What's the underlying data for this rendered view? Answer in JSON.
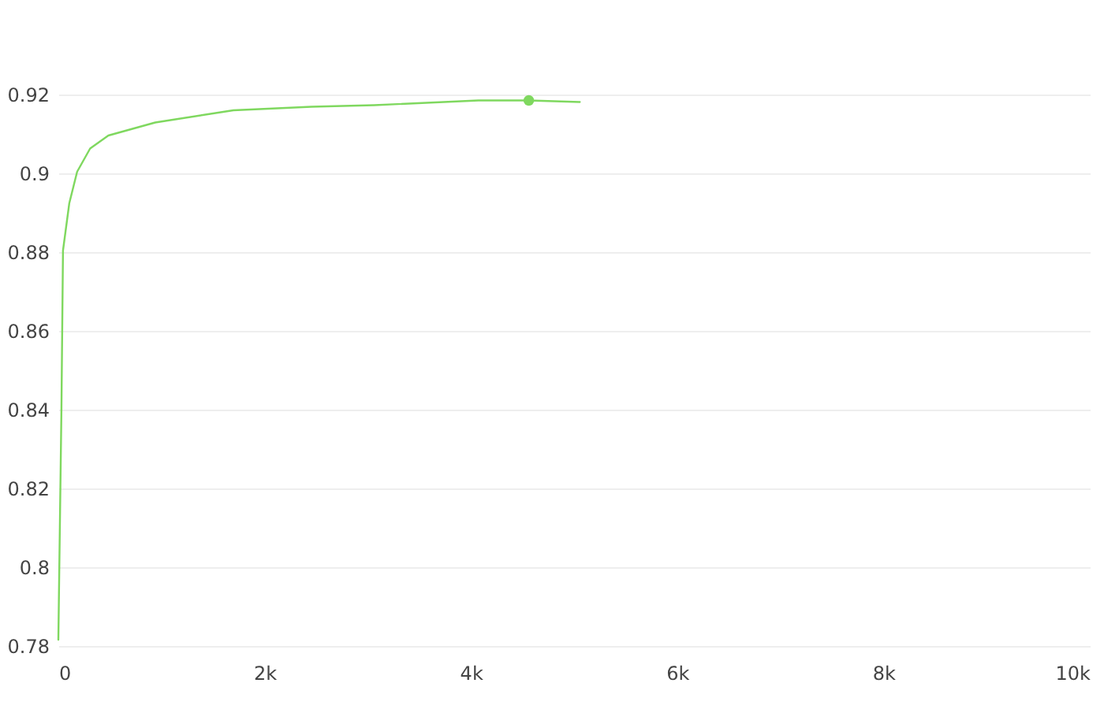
{
  "chart_data": {
    "type": "line",
    "x": [
      0,
      30,
      45,
      106,
      182,
      308,
      485,
      939,
      1697,
      2455,
      3061,
      4071,
      4561,
      5056
    ],
    "series": [
      {
        "color": "#7fd85f",
        "values": [
          0.7816,
          0.8404,
          0.8804,
          0.8924,
          0.9004,
          0.9063,
          0.9096,
          0.9129,
          0.916,
          0.9169,
          0.9173,
          0.9185,
          0.9185,
          0.9181
        ]
      },
      {
        "type": "scatter",
        "color": "#7fd85f",
        "x": [
          4561
        ],
        "values": [
          0.9185
        ],
        "marker": "circle"
      }
    ],
    "xlim": [
      0,
      10000
    ],
    "xticks": [
      0,
      {
        "value": 2000,
        "label": "2k"
      },
      {
        "value": 4000,
        "label": "4k"
      },
      {
        "value": 6000,
        "label": "6k"
      },
      {
        "value": 8000,
        "label": "8k"
      },
      {
        "value": 10000,
        "label": "10k"
      }
    ],
    "ylim": [
      0.78,
      0.92
    ],
    "yticks": [
      0.78,
      0.8,
      0.82,
      0.84,
      0.86,
      0.88,
      0.9,
      0.92
    ],
    "grid": "y",
    "line_style": "solid"
  }
}
